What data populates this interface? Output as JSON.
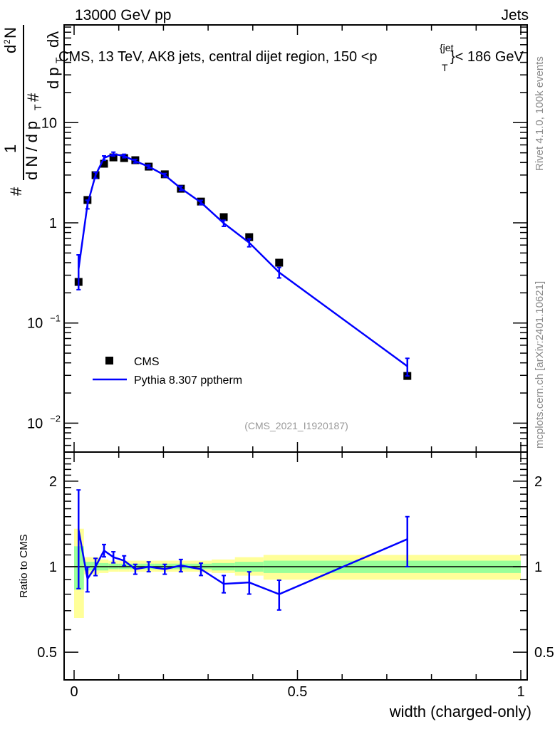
{
  "header": {
    "left": "13000 GeV pp",
    "right": "Jets"
  },
  "side_text": {
    "rivet": "Rivet 4.1.0,  100k events",
    "mcplots": "mcplots.cern.ch [arXiv:2401.10621]"
  },
  "analysis_id": "(CMS_2021_I1920187)",
  "plot_title": {
    "main": "CMS, 13 TeV, AK8 jets, central dijet region, 150 <p",
    "sub": "T",
    "sup": "{jet",
    "tail": "}< 186 GeV"
  },
  "ylabel_parts": {
    "hash1": "#",
    "one": "1",
    "dn": "d N / d p",
    "t1": "T",
    "hash2": "#",
    "d2n": "d",
    "two": "2",
    "n": "N",
    "dpt": "d p",
    "t2": "T",
    "dl": "dλ"
  },
  "colors": {
    "data": "#000000",
    "mc": "#0000ff",
    "stat_band": "#99ff99",
    "total_band": "#ffff99"
  },
  "chart_data": [
    {
      "type": "line",
      "panel": "main",
      "title": "CMS, 13 TeV, AK8 jets, central dijet region, 150 < pT jet < 186 GeV",
      "ylabel": "1/(dN/dpT) d2N/(dpT dλ)",
      "yscale": "log",
      "ylim": [
        0.005,
        80
      ],
      "xlim": [
        -0.02,
        1.02
      ],
      "yticks": [
        {
          "v": 10,
          "label": "10"
        },
        {
          "v": 1,
          "label": "1"
        },
        {
          "v": 0.1,
          "label": "10",
          "exp": "−1"
        },
        {
          "v": 0.01,
          "label": "10",
          "exp": "−2"
        }
      ],
      "legend": {
        "placement": "bottom-left",
        "entries": [
          "CMS",
          "Pythia 8.307 pptherm"
        ]
      },
      "x": [
        0.01,
        0.03,
        0.048,
        0.067,
        0.088,
        0.112,
        0.137,
        0.167,
        0.203,
        0.239,
        0.284,
        0.335,
        0.392,
        0.459,
        0.746
      ],
      "series": [
        {
          "name": "CMS",
          "style": "markers",
          "values": [
            0.257,
            1.69,
            2.99,
            3.89,
            4.5,
            4.43,
            4.22,
            3.64,
            3.05,
            2.19,
            1.63,
            1.14,
            0.72,
            0.4,
            0.0296
          ]
        },
        {
          "name": "Pythia 8.307 pptherm",
          "style": "line",
          "ratio_to_data": [
            1.35,
            0.906,
            1.0,
            1.14,
            1.08,
            1.05,
            0.98,
            1.0,
            0.98,
            1.01,
            0.98,
            0.87,
            0.88,
            0.8,
            1.25
          ],
          "rel_err": [
            0.38,
            0.1,
            0.07,
            0.05,
            0.045,
            0.04,
            0.04,
            0.04,
            0.04,
            0.05,
            0.05,
            0.07,
            0.09,
            0.12,
            0.2
          ]
        }
      ]
    },
    {
      "type": "line",
      "panel": "ratio",
      "ylabel": "Ratio to CMS",
      "xlabel": "width (charged-only)",
      "yscale": "log",
      "ylim": [
        0.4,
        2.5
      ],
      "yticks": [
        {
          "v": 2,
          "label": "2"
        },
        {
          "v": 1,
          "label": "1"
        },
        {
          "v": 0.5,
          "label": "0.5"
        }
      ],
      "xticks": [
        {
          "v": 0,
          "label": "0"
        },
        {
          "v": 0.5,
          "label": "0.5"
        },
        {
          "v": 1,
          "label": "1"
        }
      ],
      "bin_edges": [
        0,
        0.022,
        0.056,
        0.077,
        0.1,
        0.124,
        0.148,
        0.18,
        0.212,
        0.26,
        0.308,
        0.36,
        0.424,
        0.496,
        1.0
      ],
      "bands": {
        "total_lo": [
          0.66,
          0.94,
          0.95,
          0.96,
          0.96,
          0.96,
          0.96,
          0.96,
          0.96,
          0.96,
          0.95,
          0.93,
          0.9,
          0.9,
          0.83
        ],
        "total_hi": [
          1.36,
          1.08,
          1.06,
          1.05,
          1.05,
          1.05,
          1.05,
          1.05,
          1.05,
          1.05,
          1.06,
          1.08,
          1.1,
          1.1,
          1.17
        ],
        "stat_lo": [
          0.83,
          0.97,
          0.97,
          0.98,
          0.98,
          0.98,
          0.98,
          0.98,
          0.98,
          0.98,
          0.97,
          0.96,
          0.95,
          0.95,
          0.91
        ],
        "stat_hi": [
          1.18,
          1.04,
          1.03,
          1.025,
          1.025,
          1.025,
          1.025,
          1.025,
          1.025,
          1.025,
          1.03,
          1.04,
          1.05,
          1.05,
          1.1
        ]
      }
    }
  ]
}
